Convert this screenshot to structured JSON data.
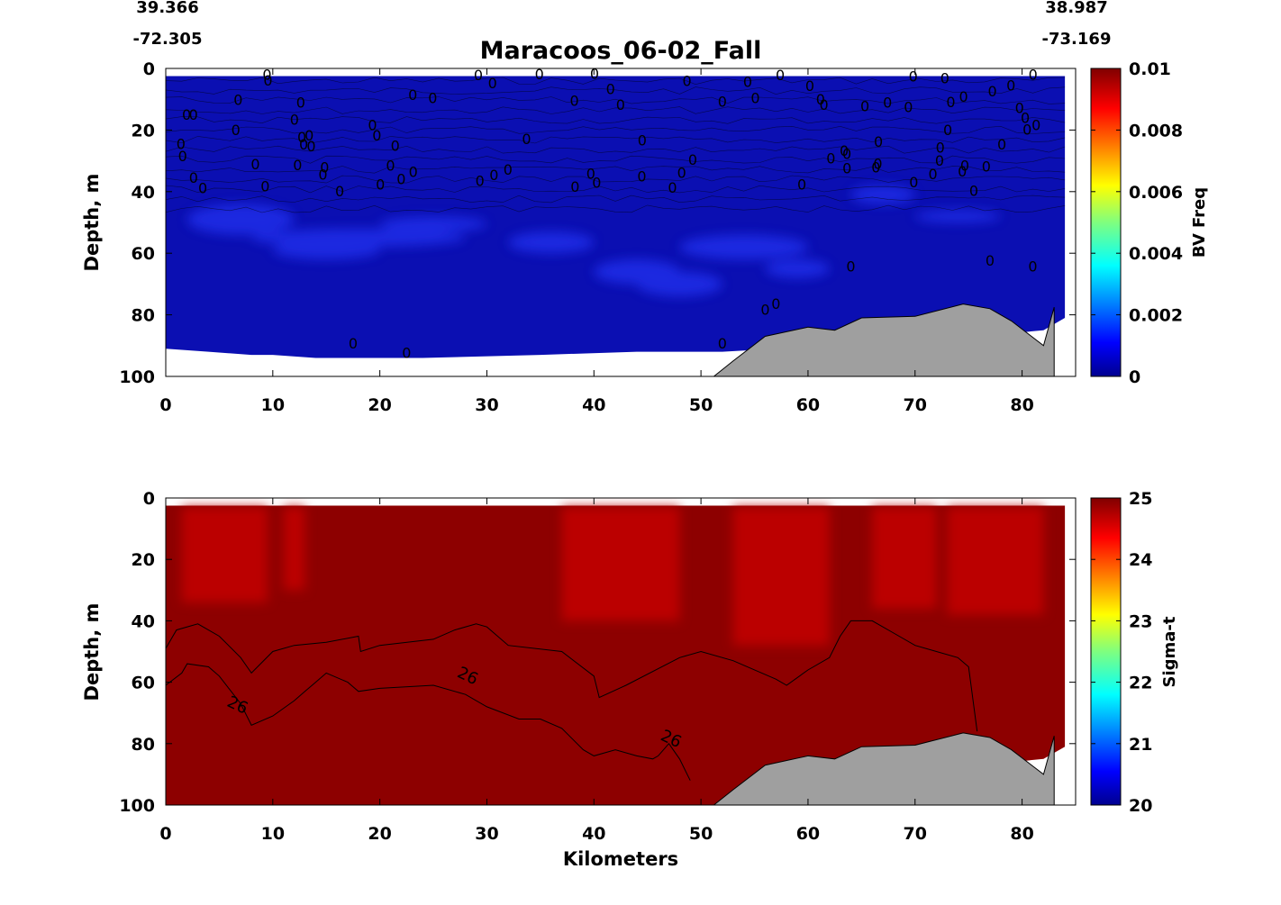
{
  "header": {
    "title": "Maracoos_06-02_Fall",
    "start_lat": "39.366",
    "start_lon": "-72.305",
    "end_lat": "38.987",
    "end_lon": "-73.169"
  },
  "chart_data": [
    {
      "type": "heatmap",
      "variable": "BV Freq",
      "xlabel": "",
      "ylabel": "Depth, m",
      "colorbar_label": "BV Freq",
      "xlim": [
        0,
        85
      ],
      "ylim": [
        100,
        0
      ],
      "xticks": [
        "0",
        "10",
        "20",
        "30",
        "40",
        "50",
        "60",
        "70",
        "80"
      ],
      "yticks": [
        "0",
        "20",
        "40",
        "60",
        "80",
        "100"
      ],
      "colorbar_range": [
        0,
        0.01
      ],
      "colorbar_ticks": [
        "0",
        "0.002",
        "0.004",
        "0.006",
        "0.008",
        "0.01"
      ],
      "colormap": "jet",
      "contour_label": "0",
      "field_color": "#0b0fb2",
      "highlight_color": "#2230f0",
      "bathymetry": {
        "x": [
          51.2,
          53,
          56,
          60,
          62.5,
          65,
          70,
          74.5,
          77,
          79,
          82,
          83,
          83
        ],
        "depth": [
          100,
          95,
          87,
          84,
          85,
          81,
          80.5,
          76.5,
          78,
          82,
          90,
          77.5,
          100
        ]
      },
      "data_extent": {
        "x": [
          0,
          4,
          8,
          10,
          14,
          24,
          35,
          44,
          52,
          57,
          62,
          66,
          70,
          74,
          79,
          82,
          84
        ],
        "bottom": [
          91,
          92,
          93,
          93,
          94,
          94,
          93,
          92,
          92,
          91,
          90,
          89,
          88,
          87,
          86,
          85,
          81
        ]
      }
    },
    {
      "type": "heatmap",
      "variable": "Sigma-t",
      "xlabel": "Kilometers",
      "ylabel": "Depth, m",
      "colorbar_label": "Sigma-t",
      "xlim": [
        0,
        85
      ],
      "ylim": [
        100,
        0
      ],
      "xticks": [
        "0",
        "10",
        "20",
        "30",
        "40",
        "50",
        "60",
        "70",
        "80"
      ],
      "yticks": [
        "0",
        "20",
        "40",
        "60",
        "80",
        "100"
      ],
      "colorbar_range": [
        20,
        25
      ],
      "colorbar_ticks": [
        "20",
        "21",
        "22",
        "23",
        "24",
        "25"
      ],
      "colormap": "jet",
      "contour_label": "26",
      "field_color": "#8d0000",
      "upper_color": "#bb0000",
      "bathymetry": {
        "x": [
          51.2,
          53,
          56,
          60,
          62.5,
          65,
          70,
          74.5,
          77,
          79,
          82,
          83,
          83
        ],
        "depth": [
          100,
          95,
          87,
          84,
          85,
          81,
          80.5,
          76.5,
          78,
          82,
          90,
          77.5,
          100
        ]
      },
      "data_extent": {
        "x": [
          0,
          4,
          8,
          10,
          14,
          24,
          35,
          44,
          52,
          57,
          62,
          66,
          70,
          74,
          79,
          82,
          84
        ],
        "bottom": [
          91,
          92,
          93,
          93,
          94,
          94,
          93,
          92,
          92,
          91,
          90,
          89,
          88,
          87,
          86,
          85,
          81
        ]
      },
      "contour_26_upper": {
        "x": [
          0,
          1,
          3,
          5,
          7,
          8,
          10,
          12,
          15,
          18,
          18.2,
          20,
          25,
          27,
          29,
          30,
          32,
          37,
          40,
          40.5,
          43,
          48,
          50,
          53,
          57,
          58,
          60,
          62,
          63,
          64,
          66,
          68,
          70,
          72,
          74,
          75,
          75.8
        ],
        "depth": [
          49,
          43,
          41,
          45,
          52,
          57,
          50,
          48,
          47,
          45,
          50,
          48,
          46,
          43,
          41,
          42,
          48,
          50,
          58,
          65,
          61,
          52,
          50,
          53,
          59,
          61,
          56,
          52,
          45,
          40,
          40,
          44,
          48,
          50,
          52,
          55,
          76
        ]
      },
      "contour_26_lower": {
        "x": [
          0,
          1.5,
          2,
          4,
          5,
          7,
          8,
          10,
          12,
          13,
          14,
          15,
          17,
          18,
          20,
          25,
          28,
          30,
          33,
          35,
          37,
          39,
          40,
          42,
          44,
          45.5,
          46,
          47,
          48,
          49
        ],
        "depth": [
          61,
          57,
          54,
          55,
          58,
          67,
          74,
          71,
          66,
          63,
          60,
          57,
          60,
          63,
          62,
          61,
          64,
          68,
          72,
          72,
          75,
          82,
          84,
          82,
          84,
          85,
          84,
          80,
          85,
          92
        ]
      },
      "contour_label_positions": {
        "x": [
          6.5,
          28,
          47
        ],
        "depth": [
          69,
          59.5,
          80
        ]
      }
    }
  ]
}
